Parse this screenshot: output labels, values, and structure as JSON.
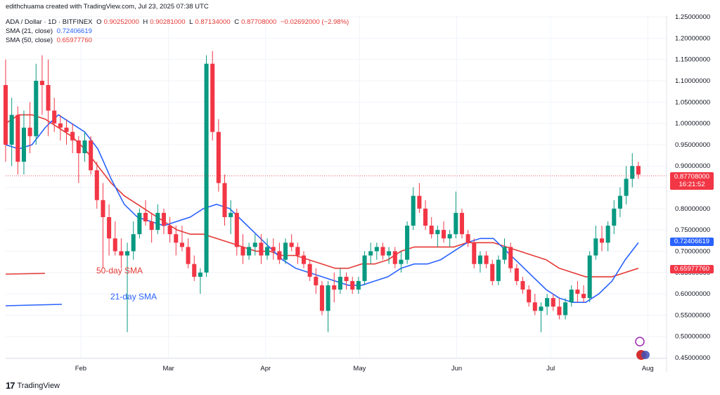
{
  "header": {
    "author_line": "edithchuama created with TradingView.com, Jul 23, 2025 07:38 UTC",
    "symbol": "ADA / Dollar · 1D · BITFINEX",
    "ohlc": {
      "o_label": "O",
      "o": "0.90252000",
      "h_label": "H",
      "h": "0.90281000",
      "l_label": "L",
      "l": "0.87134000",
      "c_label": "C",
      "c": "0.87708000",
      "change": "−0.02692000 (−2.98%)"
    },
    "sma21": {
      "label": "SMA (21, close)",
      "value": "0.72406619"
    },
    "sma50": {
      "label": "SMA (50, close)",
      "value": "0.65977760"
    }
  },
  "annotations": {
    "sma50_text": "50-day SMA",
    "sma21_text": "21-day SMA"
  },
  "price_tags": {
    "last": "0.87708000",
    "countdown": "16:21:52",
    "sma21": "0.72406619",
    "sma50": "0.65977760"
  },
  "footer": {
    "brand": "TradingView",
    "logo": "17"
  },
  "colors": {
    "up": "#089981",
    "down": "#f23645",
    "sma21": "#2962ff",
    "sma50": "#e53935"
  },
  "chart_data": {
    "type": "candlestick",
    "x_ticks": [
      "Feb",
      "Mar",
      "Apr",
      "May",
      "Jun",
      "Jul",
      "Aug"
    ],
    "y_ticks": [
      "1.25000000",
      "1.20000000",
      "1.15000000",
      "1.10000000",
      "1.05000000",
      "1.00000000",
      "0.95000000",
      "0.90000000",
      "0.85000000",
      "0.80000000",
      "0.75000000",
      "0.70000000",
      "0.65000000",
      "0.60000000",
      "0.55000000",
      "0.50000000",
      "0.45000000"
    ],
    "ylim": [
      0.45,
      1.25
    ],
    "x_range_days": [
      0,
      211
    ],
    "candles": [
      [
        1.09,
        1.15,
        0.91,
        0.95
      ],
      [
        0.95,
        1.06,
        0.9,
        1.02
      ],
      [
        1.02,
        1.04,
        0.88,
        0.91
      ],
      [
        0.91,
        1.03,
        0.88,
        0.99
      ],
      [
        0.99,
        1.05,
        0.93,
        0.97
      ],
      [
        0.97,
        1.14,
        0.95,
        1.1
      ],
      [
        1.1,
        1.16,
        1.02,
        1.09
      ],
      [
        1.09,
        1.15,
        0.97,
        1.03
      ],
      [
        1.03,
        1.06,
        0.98,
        1
      ],
      [
        1,
        1.02,
        0.96,
        0.99
      ],
      [
        0.99,
        1.01,
        0.95,
        0.98
      ],
      [
        0.98,
        1,
        0.93,
        0.96
      ],
      [
        0.96,
        0.97,
        0.86,
        0.93
      ],
      [
        0.93,
        0.98,
        0.91,
        0.96
      ],
      [
        0.96,
        0.97,
        0.88,
        0.89
      ],
      [
        0.89,
        0.91,
        0.8,
        0.82
      ],
      [
        0.82,
        0.86,
        0.66,
        0.78
      ],
      [
        0.78,
        0.81,
        0.69,
        0.73
      ],
      [
        0.73,
        0.77,
        0.69,
        0.7
      ],
      [
        0.7,
        0.73,
        0.66,
        0.69
      ],
      [
        0.69,
        0.72,
        0.51,
        0.7
      ],
      [
        0.7,
        0.77,
        0.68,
        0.74
      ],
      [
        0.74,
        0.8,
        0.73,
        0.79
      ],
      [
        0.79,
        0.82,
        0.76,
        0.77
      ],
      [
        0.77,
        0.79,
        0.72,
        0.75
      ],
      [
        0.75,
        0.81,
        0.74,
        0.79
      ],
      [
        0.79,
        0.8,
        0.74,
        0.76
      ],
      [
        0.76,
        0.78,
        0.72,
        0.74
      ],
      [
        0.74,
        0.76,
        0.69,
        0.72
      ],
      [
        0.72,
        0.76,
        0.7,
        0.71
      ],
      [
        0.71,
        0.73,
        0.66,
        0.67
      ],
      [
        0.67,
        0.69,
        0.63,
        0.64
      ],
      [
        0.64,
        0.66,
        0.6,
        0.65
      ],
      [
        0.65,
        1.16,
        0.64,
        1.14
      ],
      [
        1.14,
        1.17,
        0.96,
        0.98
      ],
      [
        0.98,
        1.01,
        0.84,
        0.86
      ],
      [
        0.86,
        0.88,
        0.76,
        0.78
      ],
      [
        0.78,
        0.82,
        0.74,
        0.79
      ],
      [
        0.79,
        0.8,
        0.69,
        0.71
      ],
      [
        0.71,
        0.74,
        0.67,
        0.69
      ],
      [
        0.69,
        0.72,
        0.68,
        0.71
      ],
      [
        0.71,
        0.74,
        0.69,
        0.72
      ],
      [
        0.72,
        0.74,
        0.67,
        0.69
      ],
      [
        0.69,
        0.73,
        0.68,
        0.71
      ],
      [
        0.71,
        0.73,
        0.68,
        0.7
      ],
      [
        0.7,
        0.72,
        0.67,
        0.68
      ],
      [
        0.68,
        0.73,
        0.67,
        0.72
      ],
      [
        0.72,
        0.74,
        0.7,
        0.71
      ],
      [
        0.71,
        0.72,
        0.67,
        0.69
      ],
      [
        0.69,
        0.7,
        0.66,
        0.67
      ],
      [
        0.67,
        0.68,
        0.63,
        0.64
      ],
      [
        0.64,
        0.66,
        0.6,
        0.62
      ],
      [
        0.62,
        0.63,
        0.55,
        0.56
      ],
      [
        0.56,
        0.63,
        0.51,
        0.62
      ],
      [
        0.62,
        0.65,
        0.58,
        0.61
      ],
      [
        0.61,
        0.66,
        0.6,
        0.64
      ],
      [
        0.64,
        0.65,
        0.61,
        0.63
      ],
      [
        0.63,
        0.64,
        0.6,
        0.61
      ],
      [
        0.61,
        0.64,
        0.6,
        0.63
      ],
      [
        0.63,
        0.7,
        0.62,
        0.69
      ],
      [
        0.69,
        0.72,
        0.67,
        0.7
      ],
      [
        0.7,
        0.72,
        0.68,
        0.71
      ],
      [
        0.71,
        0.72,
        0.68,
        0.69
      ],
      [
        0.69,
        0.71,
        0.67,
        0.7
      ],
      [
        0.7,
        0.71,
        0.66,
        0.67
      ],
      [
        0.67,
        0.7,
        0.65,
        0.68
      ],
      [
        0.68,
        0.77,
        0.67,
        0.76
      ],
      [
        0.76,
        0.85,
        0.75,
        0.83
      ],
      [
        0.83,
        0.86,
        0.79,
        0.8
      ],
      [
        0.8,
        0.82,
        0.75,
        0.76
      ],
      [
        0.76,
        0.78,
        0.73,
        0.74
      ],
      [
        0.74,
        0.76,
        0.71,
        0.75
      ],
      [
        0.75,
        0.77,
        0.72,
        0.73
      ],
      [
        0.73,
        0.75,
        0.71,
        0.74
      ],
      [
        0.74,
        0.84,
        0.73,
        0.79
      ],
      [
        0.79,
        0.8,
        0.73,
        0.74
      ],
      [
        0.74,
        0.75,
        0.71,
        0.72
      ],
      [
        0.72,
        0.73,
        0.66,
        0.67
      ],
      [
        0.67,
        0.7,
        0.65,
        0.69
      ],
      [
        0.69,
        0.7,
        0.66,
        0.67
      ],
      [
        0.67,
        0.68,
        0.62,
        0.63
      ],
      [
        0.63,
        0.69,
        0.62,
        0.68
      ],
      [
        0.68,
        0.73,
        0.67,
        0.71
      ],
      [
        0.71,
        0.72,
        0.65,
        0.66
      ],
      [
        0.66,
        0.67,
        0.62,
        0.63
      ],
      [
        0.63,
        0.64,
        0.6,
        0.61
      ],
      [
        0.61,
        0.62,
        0.57,
        0.58
      ],
      [
        0.58,
        0.6,
        0.55,
        0.56
      ],
      [
        0.56,
        0.58,
        0.51,
        0.57
      ],
      [
        0.57,
        0.6,
        0.55,
        0.59
      ],
      [
        0.59,
        0.6,
        0.56,
        0.57
      ],
      [
        0.57,
        0.59,
        0.54,
        0.55
      ],
      [
        0.55,
        0.59,
        0.54,
        0.58
      ],
      [
        0.58,
        0.62,
        0.57,
        0.61
      ],
      [
        0.61,
        0.63,
        0.58,
        0.6
      ],
      [
        0.6,
        0.62,
        0.58,
        0.59
      ],
      [
        0.59,
        0.7,
        0.58,
        0.69
      ],
      [
        0.69,
        0.76,
        0.68,
        0.73
      ],
      [
        0.73,
        0.76,
        0.7,
        0.72
      ],
      [
        0.72,
        0.77,
        0.7,
        0.76
      ],
      [
        0.76,
        0.82,
        0.74,
        0.8
      ],
      [
        0.8,
        0.85,
        0.78,
        0.83
      ],
      [
        0.83,
        0.9,
        0.81,
        0.87
      ],
      [
        0.87,
        0.93,
        0.85,
        0.9
      ],
      [
        0.9,
        0.91,
        0.87,
        0.88
      ]
    ],
    "first_candle_day": 0,
    "last_candle_day": 202,
    "sma21": [
      0.95,
      0.94,
      0.95,
      0.99,
      1.02,
      1.0,
      0.98,
      0.94,
      0.87,
      0.81,
      0.78,
      0.77,
      0.76,
      0.77,
      0.78,
      0.8,
      0.81,
      0.8,
      0.77,
      0.74,
      0.71,
      0.68,
      0.66,
      0.65,
      0.64,
      0.63,
      0.62,
      0.62,
      0.63,
      0.64,
      0.66,
      0.67,
      0.67,
      0.68,
      0.7,
      0.72,
      0.73,
      0.73,
      0.7,
      0.67,
      0.64,
      0.61,
      0.59,
      0.58,
      0.58,
      0.6,
      0.63,
      0.68,
      0.72
    ],
    "sma50": [
      1.0,
      1.02,
      1.02,
      1.01,
      0.99,
      0.97,
      0.94,
      0.9,
      0.86,
      0.83,
      0.81,
      0.79,
      0.77,
      0.75,
      0.74,
      0.74,
      0.73,
      0.72,
      0.71,
      0.7,
      0.7,
      0.69,
      0.69,
      0.68,
      0.67,
      0.66,
      0.66,
      0.67,
      0.67,
      0.68,
      0.7,
      0.71,
      0.71,
      0.71,
      0.71,
      0.72,
      0.72,
      0.72,
      0.71,
      0.7,
      0.69,
      0.68,
      0.66,
      0.65,
      0.64,
      0.64,
      0.64,
      0.65,
      0.66
    ]
  }
}
